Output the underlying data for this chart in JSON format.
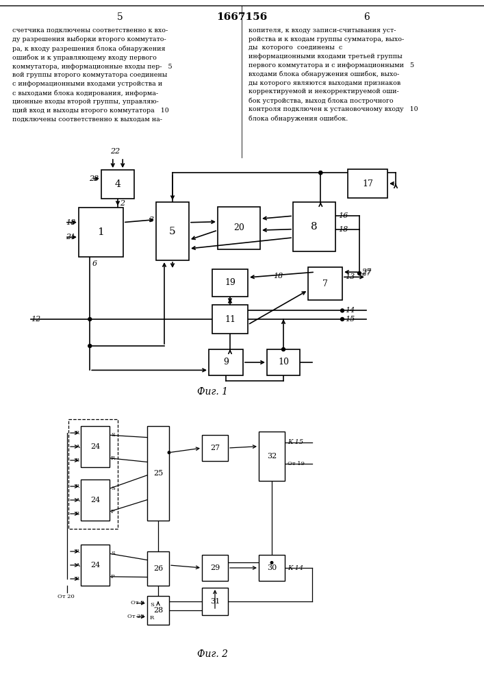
{
  "title": "1667156",
  "page_left": "5",
  "page_right": "6",
  "fig1_label": "Фиг. 1",
  "fig2_label": "Фиг. 2",
  "bg": "#ffffff",
  "line_color": "#000000"
}
